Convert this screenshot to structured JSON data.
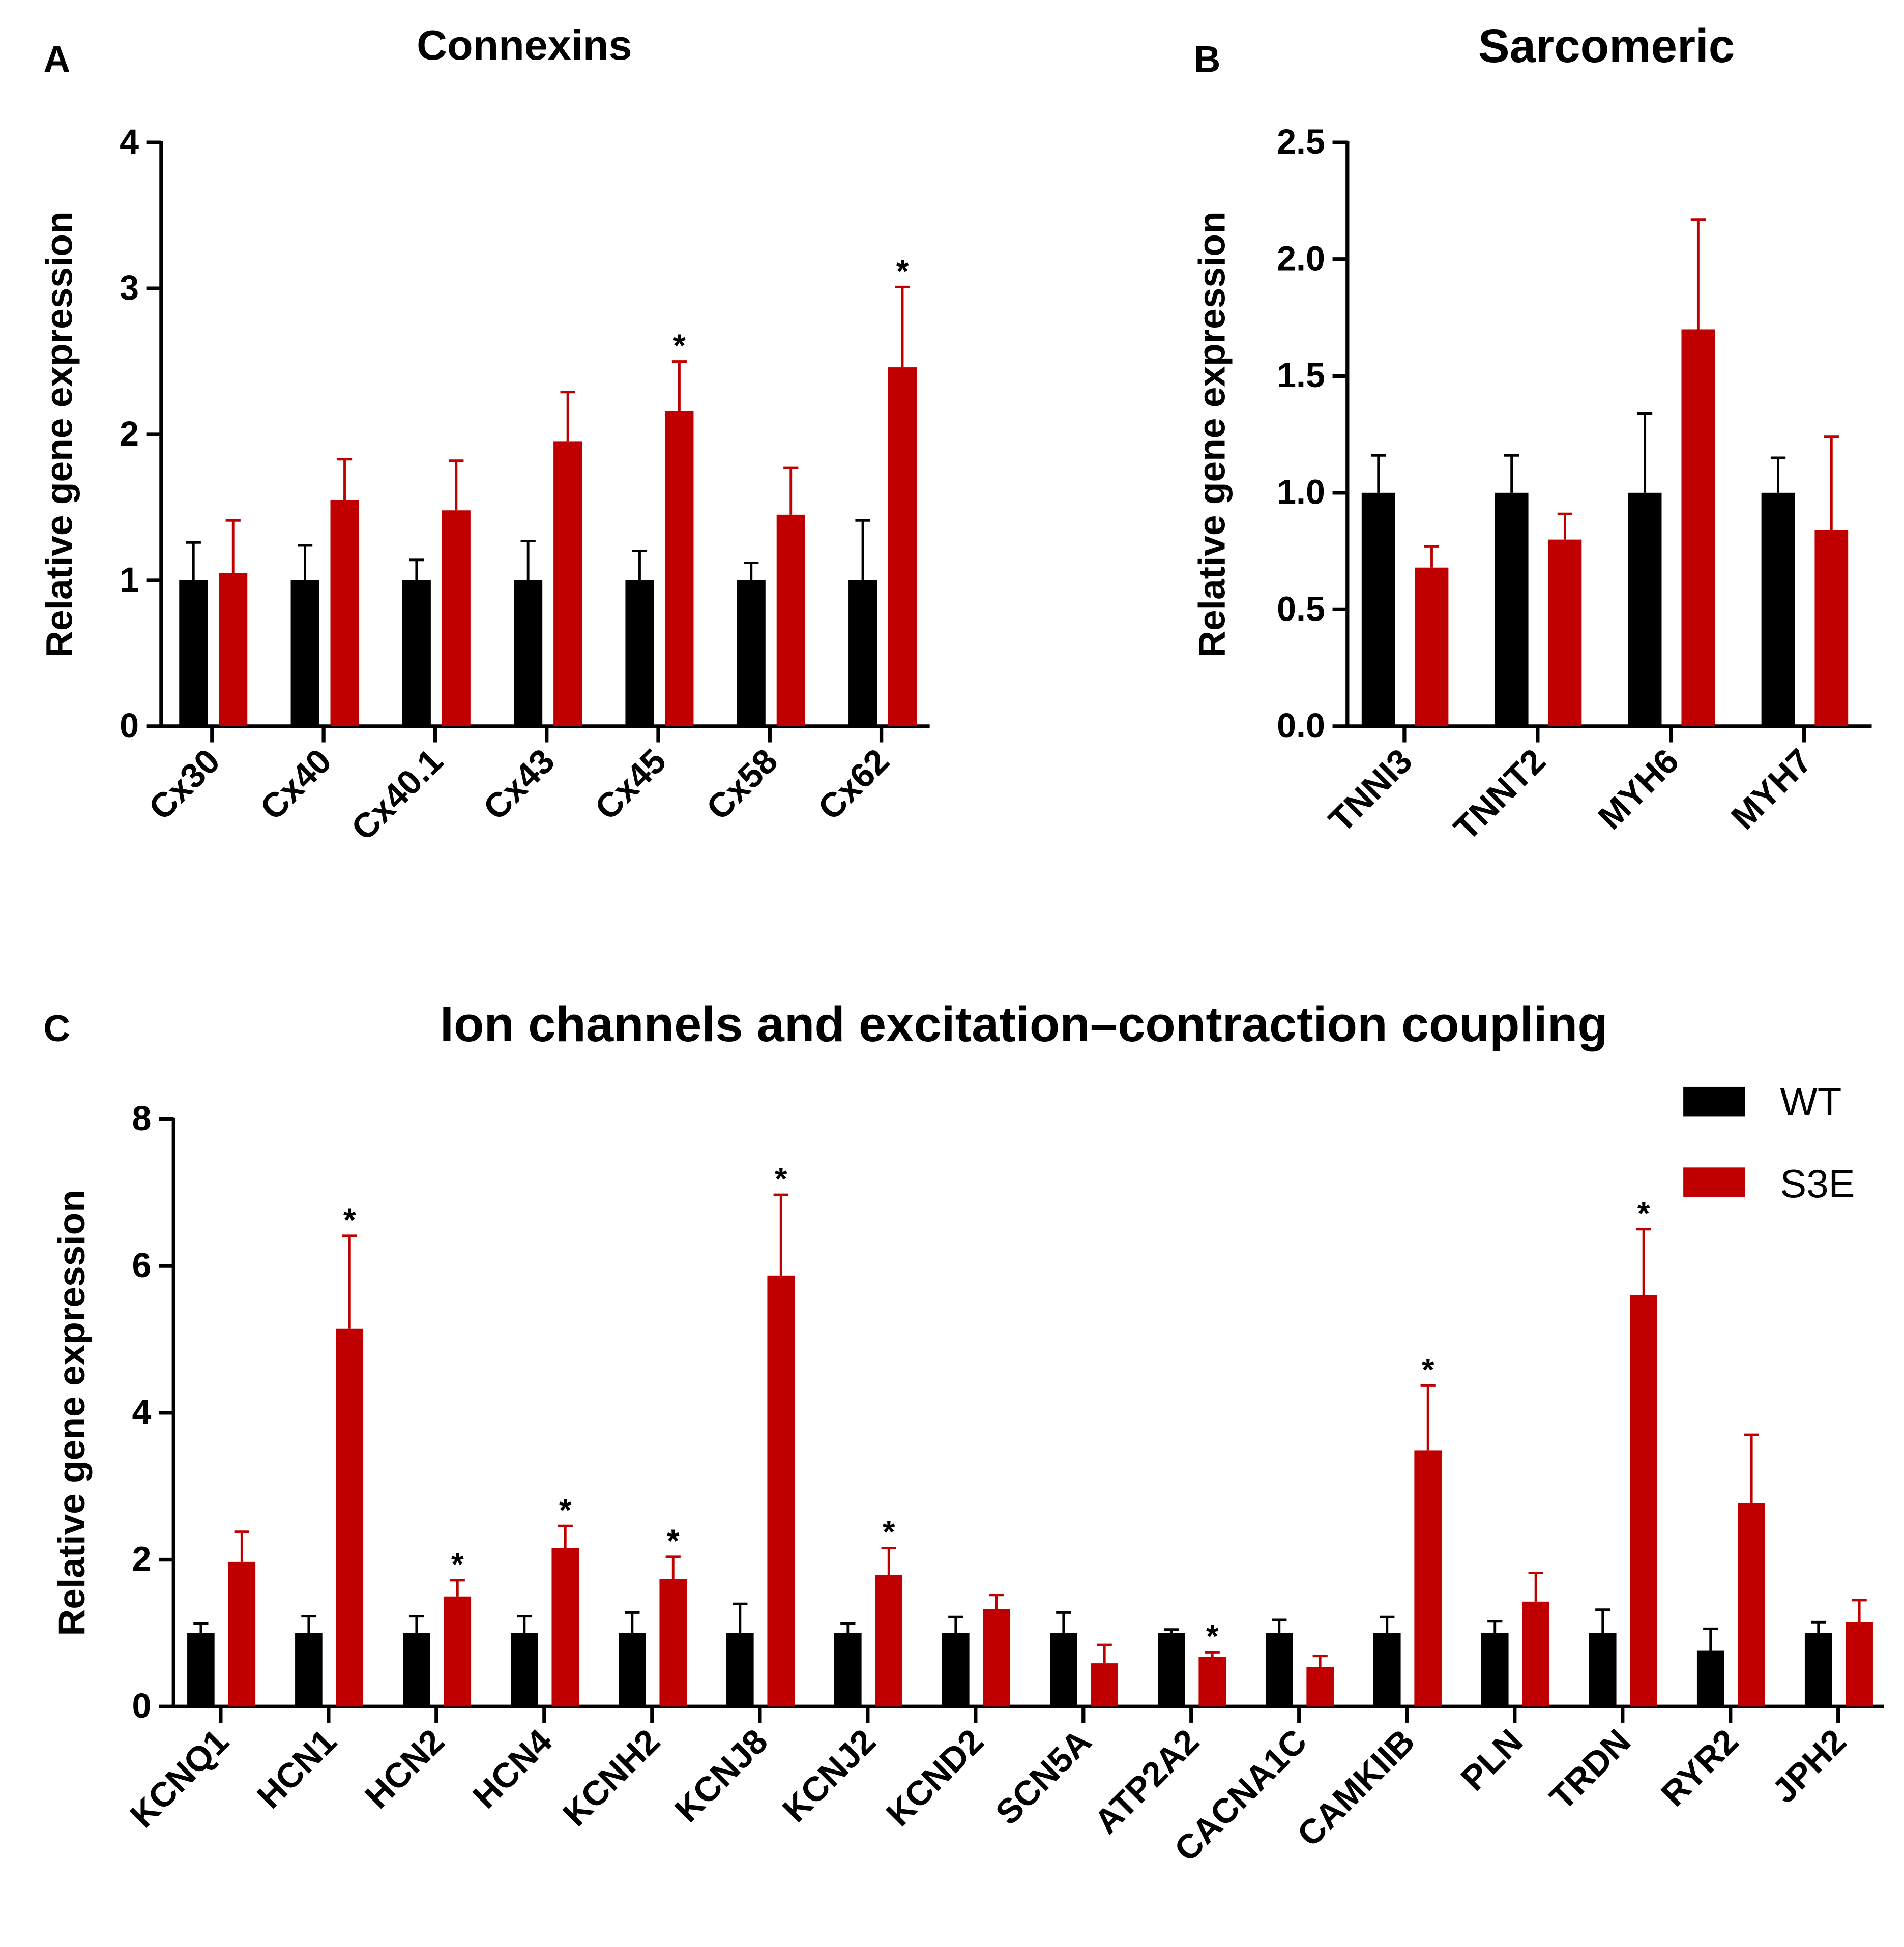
{
  "legend": [
    {
      "label": "WT",
      "color": "#000000"
    },
    {
      "label": "S3E",
      "color": "#c00000"
    }
  ],
  "chart_data": [
    {
      "panel": "A",
      "type": "bar",
      "title": "Connexins",
      "ylabel": "Relative gene expression",
      "xlabel": "",
      "ylim": [
        0,
        4
      ],
      "yticks": [
        "0",
        "1",
        "2",
        "3",
        "4"
      ],
      "ytick_values": [
        0,
        1,
        2,
        3,
        4
      ],
      "categories": [
        "Cx30",
        "Cx40",
        "Cx40.1",
        "Cx43",
        "Cx45",
        "Cx58",
        "Cx62"
      ],
      "series": [
        {
          "name": "WT",
          "color": "#000000",
          "values": [
            1,
            1,
            1,
            1,
            1,
            1,
            1
          ],
          "error_top": [
            1.26,
            1.24,
            1.14,
            1.27,
            1.2,
            1.12,
            1.41
          ]
        },
        {
          "name": "S3E",
          "color": "#c00000",
          "values": [
            1.05,
            1.55,
            1.48,
            1.95,
            2.16,
            1.45,
            2.46
          ],
          "error_top": [
            1.41,
            1.83,
            1.82,
            2.29,
            2.5,
            1.77,
            3.01
          ],
          "significant": [
            false,
            false,
            false,
            false,
            true,
            false,
            true
          ]
        }
      ],
      "significance_mark": "*"
    },
    {
      "panel": "B",
      "type": "bar",
      "title": "Sarcomeric",
      "ylabel": "Relative gene expression",
      "xlabel": "",
      "ylim": [
        0,
        2.5
      ],
      "yticks": [
        "0.0",
        "0.5",
        "1.0",
        "1.5",
        "2.0",
        "2.5"
      ],
      "ytick_values": [
        0,
        0.5,
        1,
        1.5,
        2,
        2.5
      ],
      "categories": [
        "TNNI3",
        "TNNT2",
        "MYH6",
        "MYH7"
      ],
      "series": [
        {
          "name": "WT",
          "color": "#000000",
          "values": [
            1,
            1,
            1,
            1
          ],
          "error_top": [
            1.16,
            1.16,
            1.34,
            1.15
          ]
        },
        {
          "name": "S3E",
          "color": "#c00000",
          "values": [
            0.68,
            0.8,
            1.7,
            0.84
          ],
          "error_top": [
            0.77,
            0.91,
            2.17,
            1.24
          ],
          "significant": [
            false,
            false,
            false,
            false
          ]
        }
      ],
      "significance_mark": "*"
    },
    {
      "panel": "C",
      "type": "bar",
      "title": "Ion channels and excitation–contraction coupling",
      "ylabel": "Relative gene expression",
      "xlabel": "",
      "ylim": [
        0,
        8
      ],
      "yticks": [
        "0",
        "2",
        "4",
        "6",
        "8"
      ],
      "ytick_values": [
        0,
        2,
        4,
        6,
        8
      ],
      "categories": [
        "KCNQ1",
        "HCN1",
        "HCN2",
        "HCN4",
        "KCNH2",
        "KCNJ8",
        "KCNJ2",
        "KCND2",
        "SCN5A",
        "ATP2A2",
        "CACNA1C",
        "CAMKIIB",
        "PLN",
        "TRDN",
        "RYR2",
        "JPH2"
      ],
      "series": [
        {
          "name": "WT",
          "color": "#000000",
          "values": [
            1,
            1,
            1,
            1,
            1,
            1,
            1,
            1,
            1,
            1,
            1,
            1,
            1,
            1,
            0.76,
            1
          ],
          "error_top": [
            1.13,
            1.23,
            1.23,
            1.23,
            1.28,
            1.4,
            1.13,
            1.22,
            1.28,
            1.05,
            1.18,
            1.22,
            1.16,
            1.32,
            1.06,
            1.15
          ]
        },
        {
          "name": "S3E",
          "color": "#c00000",
          "values": [
            1.97,
            5.15,
            1.5,
            2.16,
            1.74,
            5.87,
            1.79,
            1.33,
            0.59,
            0.68,
            0.54,
            3.49,
            1.43,
            5.6,
            2.77,
            1.15
          ],
          "error_top": [
            2.38,
            6.41,
            1.72,
            2.46,
            2.04,
            6.97,
            2.16,
            1.52,
            0.84,
            0.74,
            0.69,
            4.37,
            1.82,
            6.5,
            3.7,
            1.45
          ],
          "significant": [
            false,
            true,
            true,
            true,
            true,
            true,
            true,
            false,
            false,
            true,
            false,
            true,
            false,
            true,
            false,
            false
          ]
        }
      ],
      "significance_mark": "*",
      "legend_position": "top-right"
    }
  ]
}
